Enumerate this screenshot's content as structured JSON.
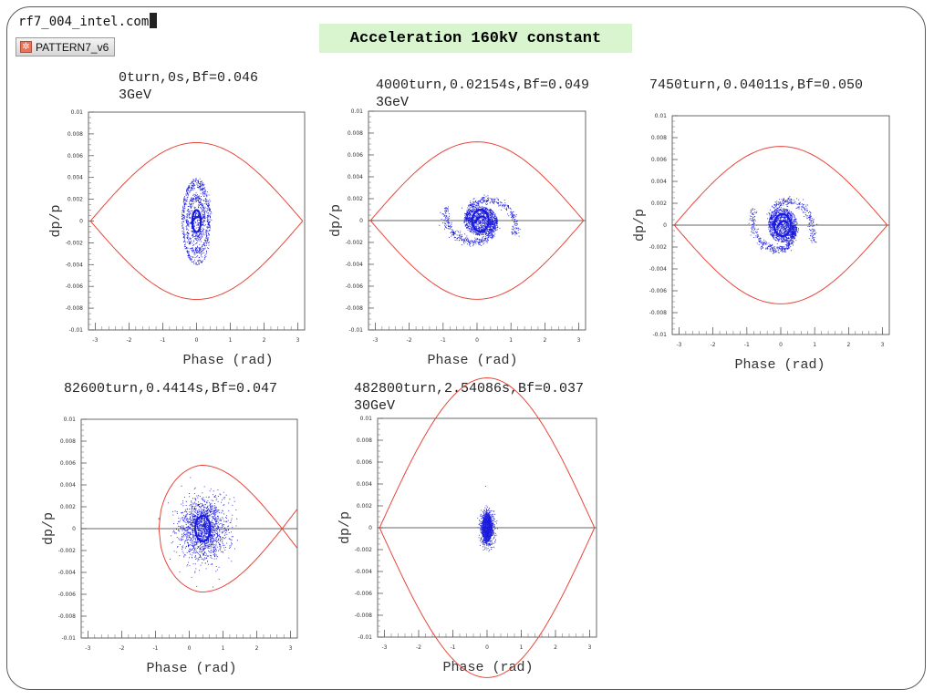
{
  "window": {
    "terminal_text": "rf7_004_intel.com",
    "pattern_button": "PATTERN7_v6"
  },
  "slide_title": "Acceleration 160kV constant",
  "colors": {
    "separatrix": "#e8463a",
    "particles": "#1a1adc",
    "axis": "#000000",
    "title_bg": "#d8f5cf"
  },
  "chart_data": [
    {
      "type": "scatter",
      "title": "0turn,0s,Bf=0.046",
      "subtitle": "3GeV",
      "xlabel": "Phase (rad)",
      "ylabel": "dp/p",
      "xlim": [
        -3.2,
        3.2
      ],
      "ylim": [
        -0.01,
        0.01
      ],
      "xticks": [
        "-3",
        "-2",
        "-1",
        "0",
        "1",
        "2",
        "3"
      ],
      "yticks": [
        "0.01",
        "0.008",
        "0.006",
        "0.004",
        "0.002",
        "0",
        "-0.002",
        "-0.004",
        "-0.006",
        "-0.008",
        "-0.01"
      ],
      "horizontal_line": false,
      "separatrix": {
        "phi_s": 0,
        "dp_max": 0.0072
      },
      "bunch": {
        "center_phase": 0,
        "center_dp": 0,
        "phase_half_width": 0.45,
        "dp_half_width": 0.004,
        "shape": "spiral"
      }
    },
    {
      "type": "scatter",
      "title": "4000turn,0.02154s,Bf=0.049",
      "subtitle": "3GeV",
      "xlabel": "Phase (rad)",
      "ylabel": "dp/p",
      "xlim": [
        -3.2,
        3.2
      ],
      "ylim": [
        -0.01,
        0.01
      ],
      "xticks": [
        "-3",
        "-2",
        "-1",
        "0",
        "1",
        "2",
        "3"
      ],
      "yticks": [
        "0.01",
        "0.008",
        "0.006",
        "0.004",
        "0.002",
        "0",
        "-0.002",
        "-0.004",
        "-0.006",
        "-0.008",
        "-0.01"
      ],
      "horizontal_line": true,
      "separatrix": {
        "phi_s": 0,
        "dp_max": 0.0072
      },
      "bunch": {
        "center_phase": 0.1,
        "center_dp": 0,
        "phase_half_width": 1.1,
        "dp_half_width": 0.003,
        "shape": "spiral-arms"
      }
    },
    {
      "type": "scatter",
      "title": "7450turn,0.04011s,Bf=0.050",
      "subtitle": "",
      "xlabel": "Phase (rad)",
      "ylabel": "dp/p",
      "xlim": [
        -3.2,
        3.2
      ],
      "ylim": [
        -0.01,
        0.01
      ],
      "xticks": [
        "-3",
        "-2",
        "-1",
        "0",
        "1",
        "2",
        "3"
      ],
      "yticks": [
        "0.01",
        "0.008",
        "0.006",
        "0.004",
        "0.002",
        "0",
        "-0.002",
        "-0.004",
        "-0.006",
        "-0.008",
        "-0.01"
      ],
      "horizontal_line": true,
      "separatrix": {
        "phi_s": 0,
        "dp_max": 0.0072
      },
      "bunch": {
        "center_phase": 0.05,
        "center_dp": 0,
        "phase_half_width": 0.95,
        "dp_half_width": 0.0035,
        "shape": "spiral-arms"
      }
    },
    {
      "type": "scatter",
      "title": "82600turn,0.4414s,Bf=0.047",
      "subtitle": "",
      "xlabel": "Phase (rad)",
      "ylabel": "dp/p",
      "xlim": [
        -3.2,
        3.2
      ],
      "ylim": [
        -0.01,
        0.01
      ],
      "xticks": [
        "-3",
        "-2",
        "-1",
        "0",
        "1",
        "2",
        "3"
      ],
      "yticks": [
        "0.01",
        "0.008",
        "0.006",
        "0.004",
        "0.002",
        "0",
        "-0.002",
        "-0.004",
        "-0.006",
        "-0.008",
        "-0.01"
      ],
      "horizontal_line": true,
      "separatrix": {
        "phi_s": 0.35,
        "dp_max": 0.0058,
        "bucket_left": -0.9,
        "bucket_right": 2.75
      },
      "bunch": {
        "center_phase": 0.4,
        "center_dp": 0,
        "phase_half_width": 0.8,
        "dp_half_width": 0.0033,
        "shape": "cloud"
      }
    },
    {
      "type": "scatter",
      "title": "482800turn,2.54086s,Bf=0.037",
      "subtitle": "30GeV",
      "xlabel": "Phase (rad)",
      "ylabel": "dp/p",
      "xlim": [
        -3.2,
        3.2
      ],
      "ylim": [
        -0.01,
        0.01
      ],
      "xticks": [
        "-3",
        "-2",
        "-1",
        "0",
        "1",
        "2",
        "3"
      ],
      "yticks": [
        "0.01",
        "0.008",
        "0.006",
        "0.004",
        "0.002",
        "0",
        "-0.002",
        "-0.004",
        "-0.006",
        "-0.008",
        "-0.01"
      ],
      "horizontal_line": true,
      "separatrix": {
        "phi_s": 0,
        "dp_max": 0.0137
      },
      "bunch": {
        "center_phase": 0,
        "center_dp": 0,
        "phase_half_width": 0.25,
        "dp_half_width": 0.0019,
        "shape": "core"
      }
    }
  ]
}
